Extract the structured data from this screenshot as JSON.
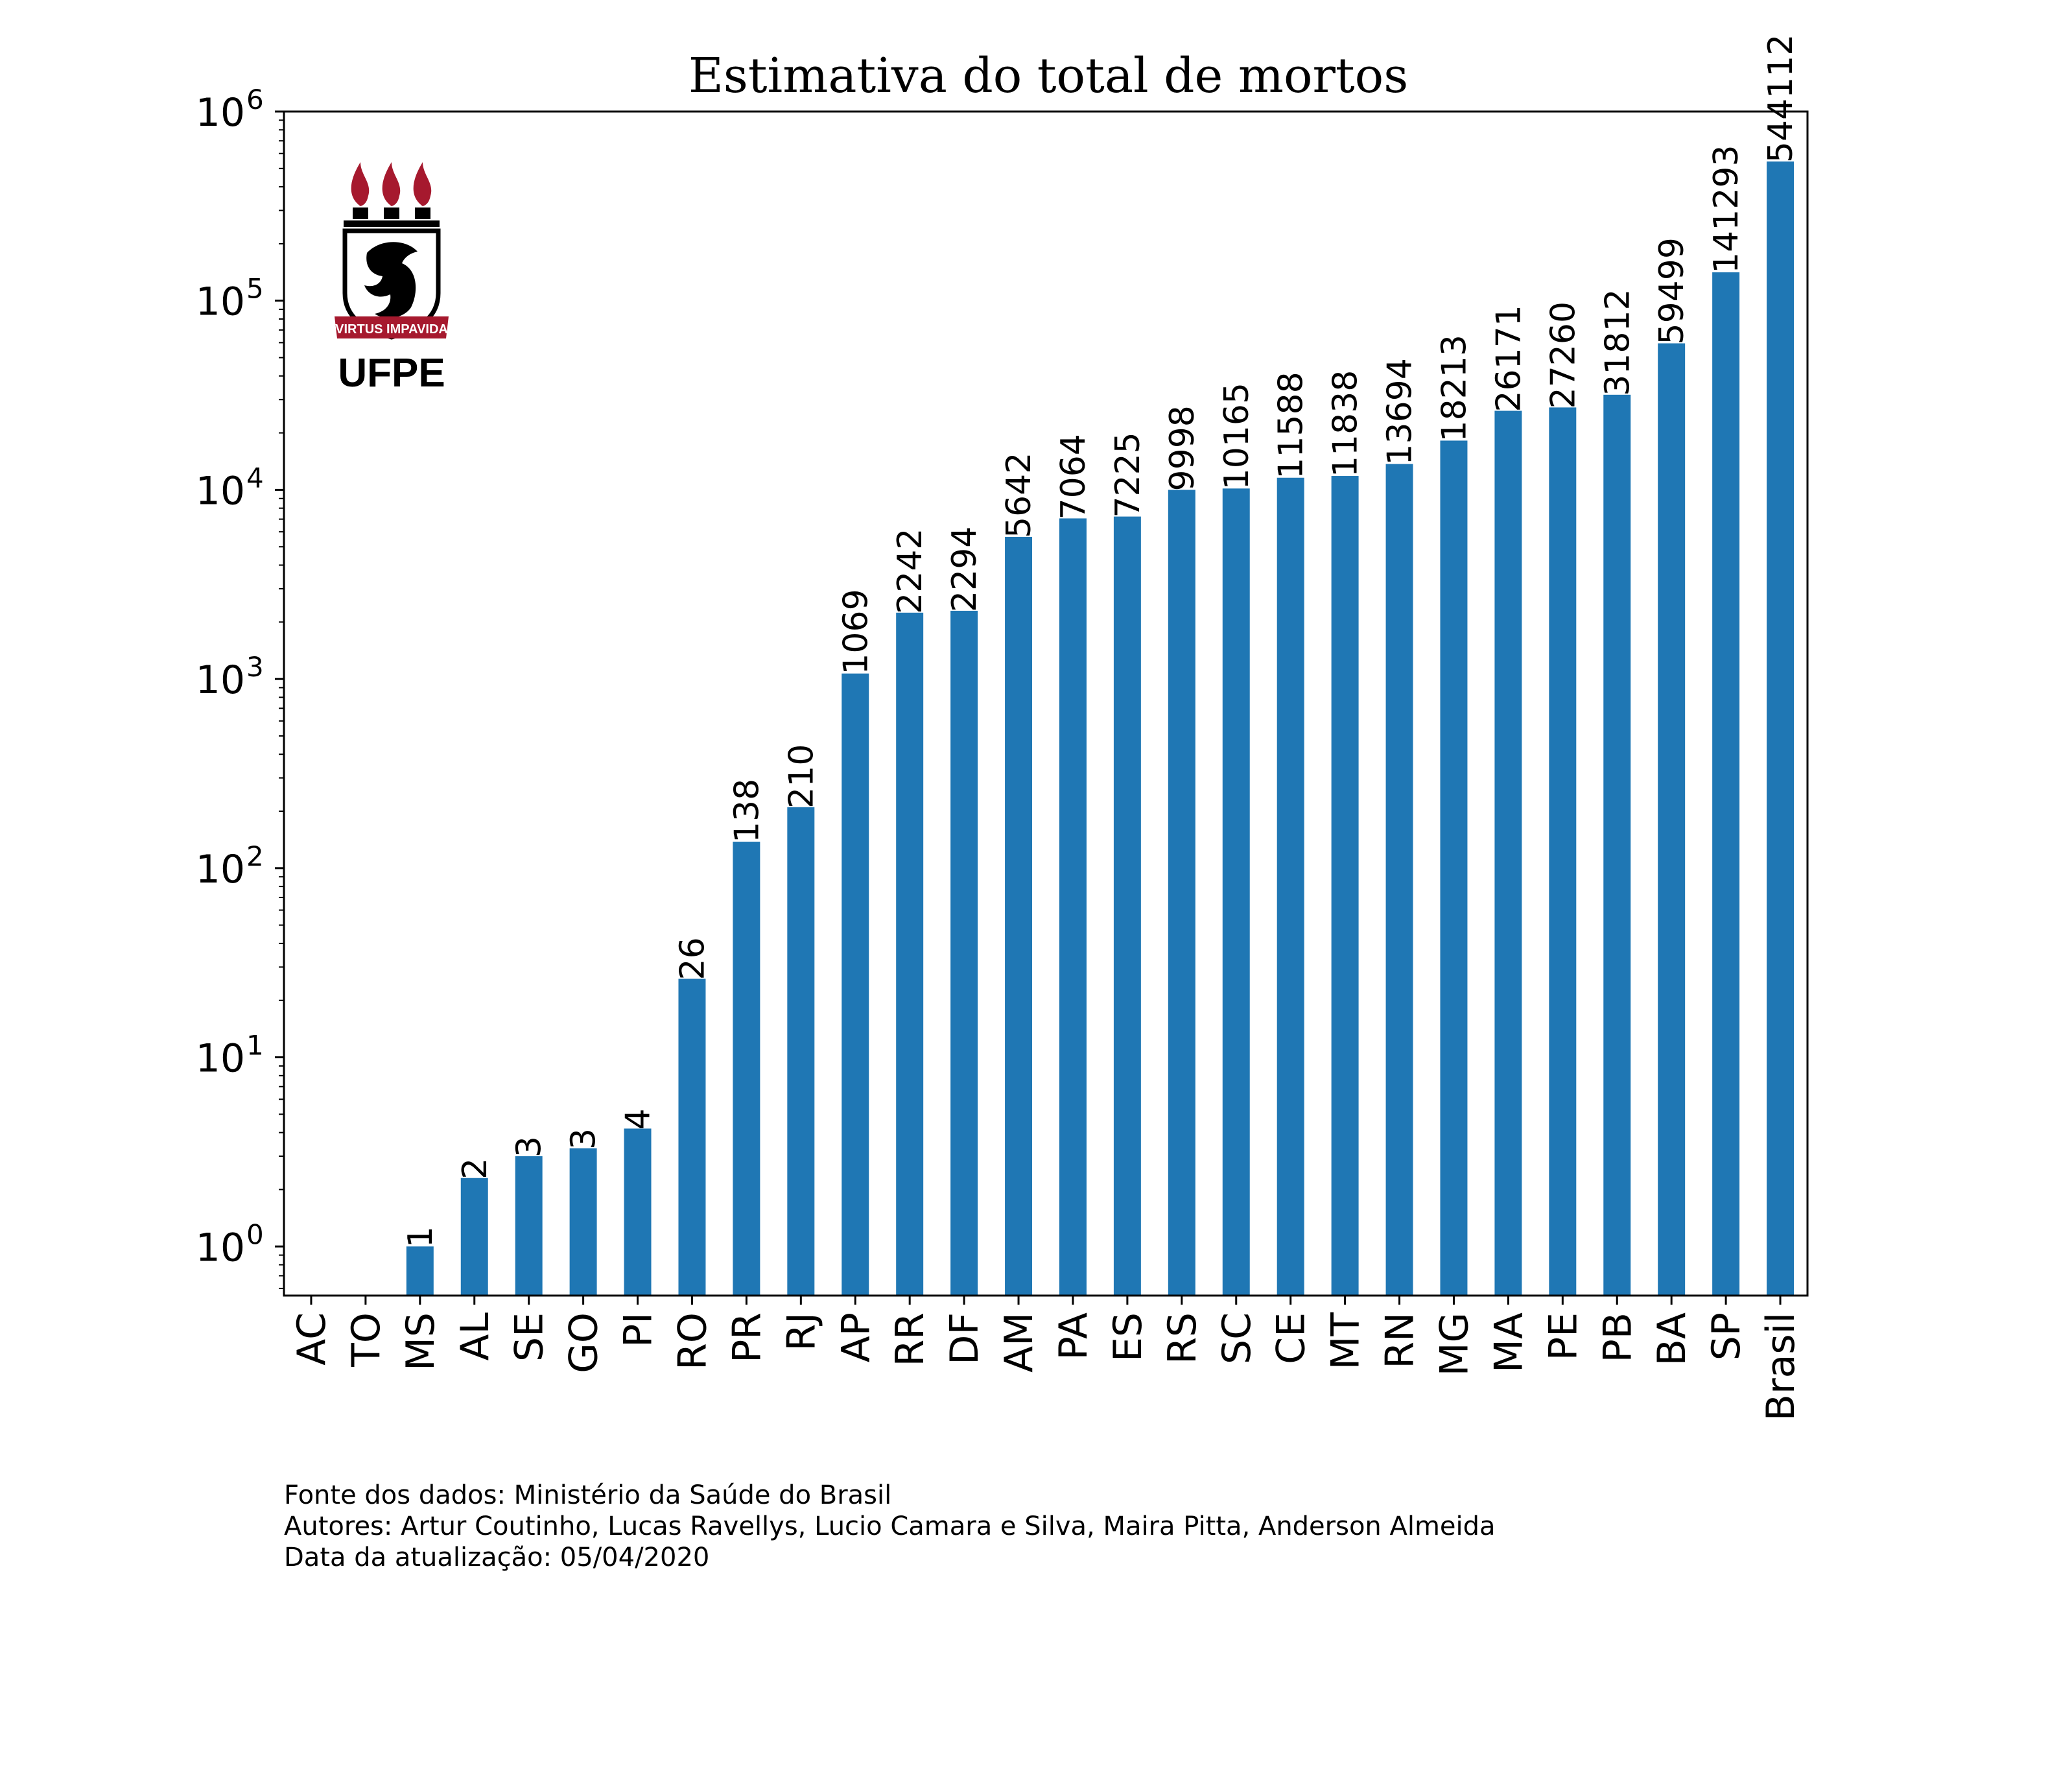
{
  "chart_data": {
    "type": "bar",
    "title": "Estimativa do total de mortos",
    "xlabel": "",
    "ylabel": "",
    "yscale": "log",
    "ylim": [
      0.55,
      1000000
    ],
    "ytick_exponents": [
      "0",
      "1",
      "2",
      "3",
      "4",
      "5",
      "6"
    ],
    "ytick_base": "10",
    "categories": [
      "AC",
      "TO",
      "MS",
      "AL",
      "SE",
      "GO",
      "PI",
      "RO",
      "PR",
      "RJ",
      "AP",
      "RR",
      "DF",
      "AM",
      "PA",
      "ES",
      "RS",
      "SC",
      "CE",
      "MT",
      "RN",
      "MG",
      "MA",
      "PE",
      "PB",
      "BA",
      "SP",
      "Brasil"
    ],
    "values": [
      0,
      0,
      1,
      2.3,
      3,
      3.3,
      4.2,
      26,
      138,
      210,
      1069,
      2242,
      2294,
      5642,
      7064,
      7225,
      9998,
      10165,
      11588,
      11838,
      13694,
      18213,
      26171,
      27260,
      31812,
      59499,
      141293,
      544112
    ],
    "data_labels": [
      "",
      "",
      "1",
      "2",
      "3",
      "3",
      "4",
      "26",
      "138",
      "210",
      "1069",
      "2242",
      "2294",
      "5642",
      "7064",
      "7225",
      "9998",
      "10165",
      "11588",
      "11838",
      "13694",
      "18213",
      "26171",
      "27260",
      "31812",
      "59499",
      "141293",
      "544112"
    ],
    "bar_color": "#1f77b4",
    "grid": false,
    "legend": "none"
  },
  "logo": {
    "motto": "VIRTUS IMPAVIDA",
    "name": "UFPE",
    "colors": {
      "crimson": "#a6192e",
      "black": "#000000"
    }
  },
  "footnote": {
    "line1": "Fonte dos dados: Ministério da Saúde do Brasil",
    "line2": "Autores: Artur Coutinho, Lucas Ravellys, Lucio Camara e Silva, Maira Pitta, Anderson Almeida",
    "line3": "Data da atualização: 05/04/2020"
  }
}
